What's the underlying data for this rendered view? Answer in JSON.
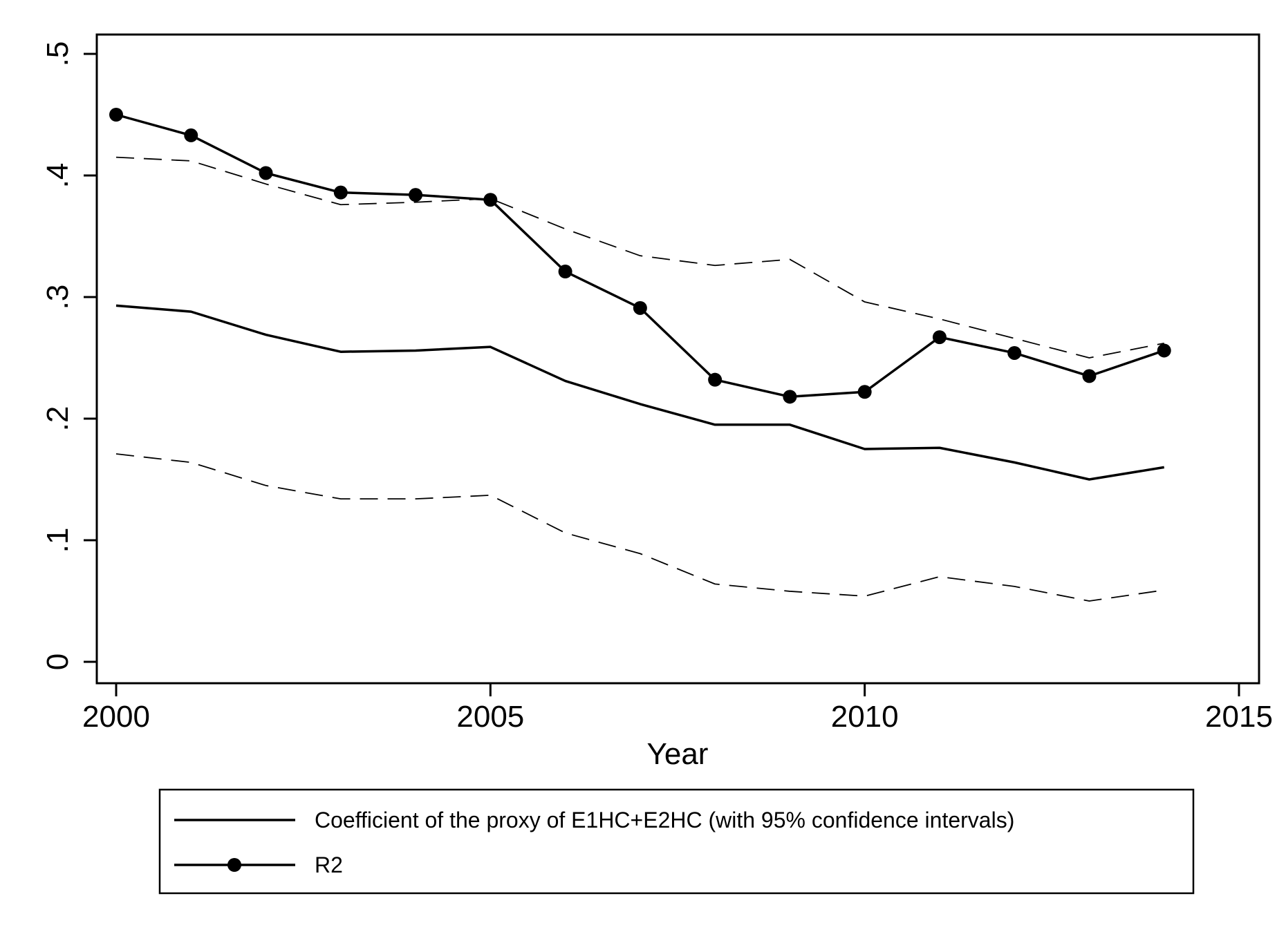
{
  "chart_data": {
    "type": "line",
    "xlabel": "Year",
    "ylabel": "",
    "xlim": [
      2000,
      2015
    ],
    "ylim": [
      0,
      0.5
    ],
    "x_ticks": [
      2000,
      2005,
      2010,
      2015
    ],
    "x_tick_labels": [
      "2000",
      "2005",
      "2010",
      "2015"
    ],
    "y_ticks": [
      0,
      0.1,
      0.2,
      0.3,
      0.4,
      0.5
    ],
    "y_tick_labels": [
      "0",
      ".1",
      ".2",
      ".3",
      ".4",
      ".5"
    ],
    "grid": false,
    "legend_position": "bottom",
    "x": [
      2000,
      2001,
      2002,
      2003,
      2004,
      2005,
      2006,
      2007,
      2008,
      2009,
      2010,
      2011,
      2012,
      2013,
      2014
    ],
    "series": [
      {
        "name": "Coefficient of the proxy of E1HC+E2HC (with 95% confidence intervals)",
        "style": "solid",
        "values": [
          0.293,
          0.288,
          0.269,
          0.255,
          0.256,
          0.259,
          0.231,
          0.212,
          0.195,
          0.195,
          0.175,
          0.176,
          0.164,
          0.15,
          0.16
        ]
      },
      {
        "name": "",
        "style": "dashed",
        "role": "upper_ci",
        "values": [
          0.415,
          0.412,
          0.393,
          0.376,
          0.378,
          0.381,
          0.356,
          0.334,
          0.326,
          0.331,
          0.296,
          0.282,
          0.266,
          0.25,
          0.262
        ]
      },
      {
        "name": "",
        "style": "dashed",
        "role": "lower_ci",
        "values": [
          0.171,
          0.164,
          0.145,
          0.134,
          0.134,
          0.137,
          0.106,
          0.089,
          0.064,
          0.058,
          0.054,
          0.07,
          0.062,
          0.05,
          0.059
        ]
      },
      {
        "name": "R2",
        "style": "solid-markers",
        "values": [
          0.45,
          0.433,
          0.402,
          0.386,
          0.384,
          0.38,
          0.321,
          0.291,
          0.232,
          0.218,
          0.222,
          0.267,
          0.254,
          0.235,
          0.256
        ]
      }
    ],
    "legend": [
      {
        "label": "Coefficient of the proxy of E1HC+E2HC (with 95% confidence intervals)",
        "marker": false
      },
      {
        "label": "R2",
        "marker": true
      }
    ]
  }
}
